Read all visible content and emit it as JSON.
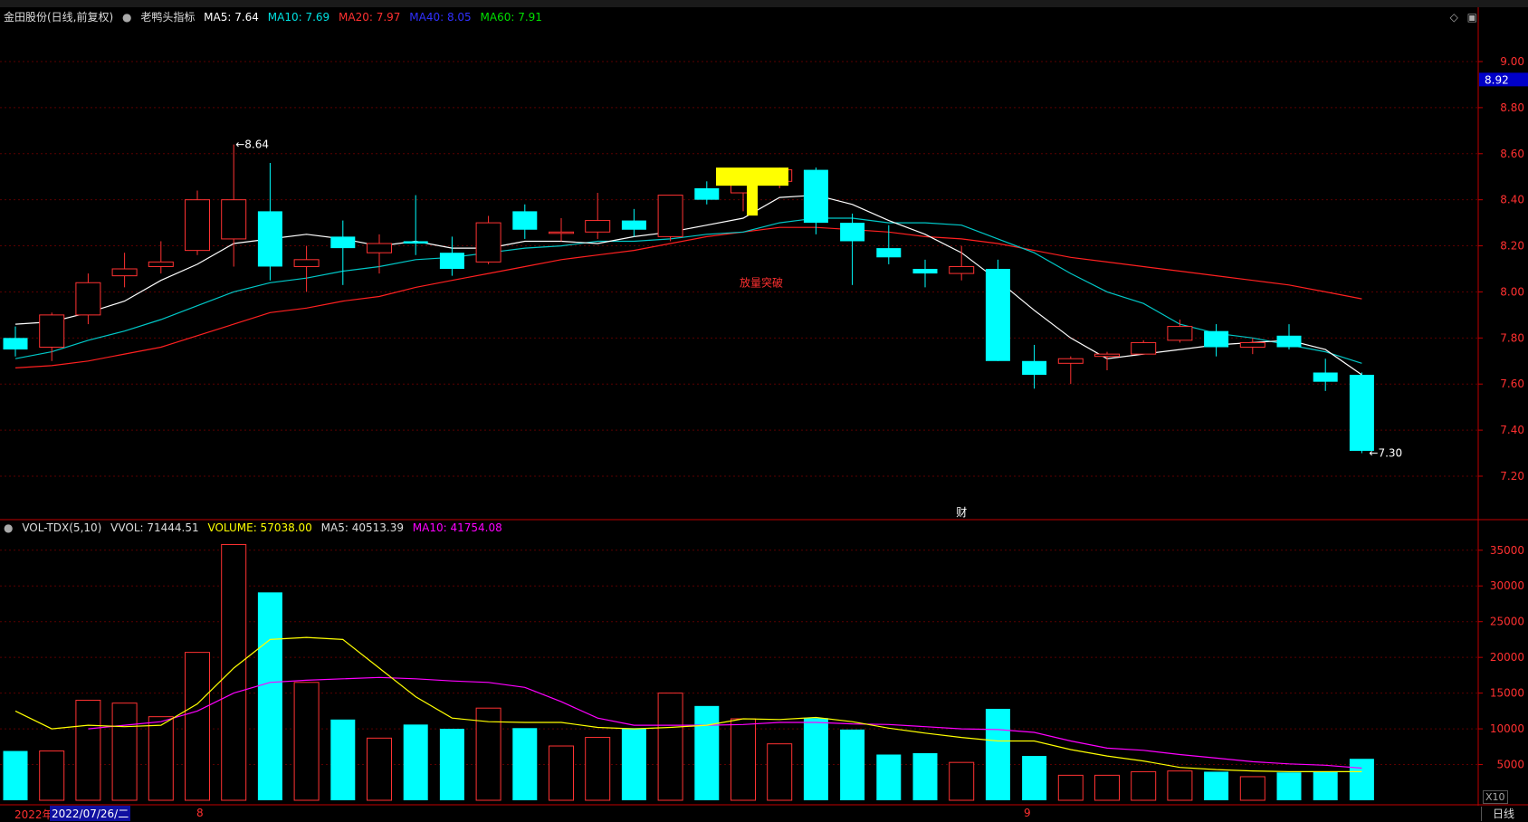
{
  "header": {
    "stock": "金田股份(日线,前复权)",
    "indicator": "老鸭头指标",
    "ma5": "MA5: 7.64",
    "ma10": "MA10: 7.69",
    "ma20": "MA20: 7.97",
    "ma40": "MA40: 8.05",
    "ma60": "MA60: 7.91"
  },
  "vol_header": {
    "name": "VOL-TDX(5,10)",
    "vvol": "VVOL: 71444.51",
    "volume": "VOLUME: 57038.00",
    "ma5": "MA5: 40513.39",
    "ma10": "MA10: 41754.08"
  },
  "footer": {
    "year_label": "2022年",
    "date_label": "2022/07/26/二",
    "month_8": "8",
    "month_9": "9",
    "daily_button": "日线",
    "x10": "X10"
  },
  "colors": {
    "up": "#ff3232",
    "down": "#00ffff",
    "ma5": "#ffffff",
    "ma10": "#00c8c8",
    "ma20": "#ff2020",
    "vol_ma5": "#ffff00",
    "vol_ma10": "#ff00ff",
    "axis": "#c00000",
    "current_price_bg": "#0000c8"
  },
  "chart_data": [
    {
      "type": "candlestick",
      "current_price": "8.92",
      "high_label": "8.64",
      "low_label": "7.30",
      "annotation": "放量突破",
      "marker": "财",
      "ylim": [
        7.2,
        9.0
      ],
      "yticks": [
        "9.00",
        "8.80",
        "8.60",
        "8.40",
        "8.20",
        "8.00",
        "7.80",
        "7.60",
        "7.40",
        "7.20"
      ],
      "candles": [
        {
          "o": 7.8,
          "h": 7.85,
          "l": 7.72,
          "c": 7.75
        },
        {
          "o": 7.76,
          "h": 7.91,
          "l": 7.7,
          "c": 7.9
        },
        {
          "o": 7.9,
          "h": 8.08,
          "l": 7.86,
          "c": 8.04
        },
        {
          "o": 8.07,
          "h": 8.17,
          "l": 8.02,
          "c": 8.1
        },
        {
          "o": 8.11,
          "h": 8.22,
          "l": 8.08,
          "c": 8.13
        },
        {
          "o": 8.18,
          "h": 8.44,
          "l": 8.16,
          "c": 8.4
        },
        {
          "o": 8.23,
          "h": 8.64,
          "l": 8.11,
          "c": 8.4
        },
        {
          "o": 8.35,
          "h": 8.56,
          "l": 8.05,
          "c": 8.11
        },
        {
          "o": 8.11,
          "h": 8.2,
          "l": 8.0,
          "c": 8.14
        },
        {
          "o": 8.24,
          "h": 8.31,
          "l": 8.03,
          "c": 8.19
        },
        {
          "o": 8.17,
          "h": 8.25,
          "l": 8.08,
          "c": 8.21
        },
        {
          "o": 8.22,
          "h": 8.42,
          "l": 8.16,
          "c": 8.21
        },
        {
          "o": 8.17,
          "h": 8.24,
          "l": 8.07,
          "c": 8.1
        },
        {
          "o": 8.13,
          "h": 8.33,
          "l": 8.12,
          "c": 8.3
        },
        {
          "o": 8.35,
          "h": 8.38,
          "l": 8.23,
          "c": 8.27
        },
        {
          "o": 8.26,
          "h": 8.32,
          "l": 8.22,
          "c": 8.26
        },
        {
          "o": 8.26,
          "h": 8.43,
          "l": 8.23,
          "c": 8.31
        },
        {
          "o": 8.31,
          "h": 8.36,
          "l": 8.24,
          "c": 8.27
        },
        {
          "o": 8.24,
          "h": 8.42,
          "l": 8.22,
          "c": 8.42
        },
        {
          "o": 8.45,
          "h": 8.48,
          "l": 8.38,
          "c": 8.4
        },
        {
          "o": 8.43,
          "h": 8.51,
          "l": 8.35,
          "c": 8.48
        },
        {
          "o": 8.48,
          "h": 8.54,
          "l": 8.45,
          "c": 8.53
        },
        {
          "o": 8.53,
          "h": 8.54,
          "l": 8.25,
          "c": 8.3
        },
        {
          "o": 8.3,
          "h": 8.34,
          "l": 8.03,
          "c": 8.22
        },
        {
          "o": 8.19,
          "h": 8.29,
          "l": 8.12,
          "c": 8.15
        },
        {
          "o": 8.1,
          "h": 8.14,
          "l": 8.02,
          "c": 8.08
        },
        {
          "o": 8.08,
          "h": 8.2,
          "l": 8.05,
          "c": 8.11
        },
        {
          "o": 8.1,
          "h": 8.14,
          "l": 7.7,
          "c": 7.7
        },
        {
          "o": 7.7,
          "h": 7.77,
          "l": 7.58,
          "c": 7.64
        },
        {
          "o": 7.69,
          "h": 7.72,
          "l": 7.6,
          "c": 7.71
        },
        {
          "o": 7.72,
          "h": 7.74,
          "l": 7.66,
          "c": 7.73
        },
        {
          "o": 7.73,
          "h": 7.79,
          "l": 7.73,
          "c": 7.78
        },
        {
          "o": 7.79,
          "h": 7.88,
          "l": 7.78,
          "c": 7.85
        },
        {
          "o": 7.83,
          "h": 7.86,
          "l": 7.72,
          "c": 7.76
        },
        {
          "o": 7.76,
          "h": 7.8,
          "l": 7.73,
          "c": 7.78
        },
        {
          "o": 7.81,
          "h": 7.86,
          "l": 7.75,
          "c": 7.76
        },
        {
          "o": 7.65,
          "h": 7.71,
          "l": 7.57,
          "c": 7.61
        },
        {
          "o": 7.64,
          "h": 7.65,
          "l": 7.3,
          "c": 7.31
        }
      ],
      "ma5": [
        7.86,
        7.87,
        7.91,
        7.96,
        8.05,
        8.12,
        8.21,
        8.23,
        8.25,
        8.23,
        8.2,
        8.22,
        8.19,
        8.19,
        8.22,
        8.22,
        8.21,
        8.24,
        8.26,
        8.29,
        8.32,
        8.41,
        8.42,
        8.38,
        8.31,
        8.25,
        8.17,
        8.05,
        7.92,
        7.8,
        7.71,
        7.73,
        7.75,
        7.77,
        7.78,
        7.79,
        7.75,
        7.64
      ],
      "ma10": [
        7.71,
        7.74,
        7.79,
        7.83,
        7.88,
        7.94,
        8.0,
        8.04,
        8.06,
        8.09,
        8.11,
        8.14,
        8.15,
        8.17,
        8.19,
        8.2,
        8.22,
        8.22,
        8.23,
        8.25,
        8.26,
        8.3,
        8.32,
        8.32,
        8.3,
        8.3,
        8.29,
        8.23,
        8.17,
        8.08,
        8.0,
        7.95,
        7.86,
        7.82,
        7.8,
        7.77,
        7.74,
        7.69
      ],
      "ma20": [
        7.67,
        7.68,
        7.7,
        7.73,
        7.76,
        7.81,
        7.86,
        7.91,
        7.93,
        7.96,
        7.98,
        8.02,
        8.05,
        8.08,
        8.11,
        8.14,
        8.16,
        8.18,
        8.21,
        8.24,
        8.26,
        8.28,
        8.28,
        8.27,
        8.26,
        8.24,
        8.23,
        8.21,
        8.18,
        8.15,
        8.13,
        8.11,
        8.09,
        8.07,
        8.05,
        8.03,
        8.0,
        7.97
      ]
    },
    {
      "type": "bar",
      "title": "VOL-TDX(5,10)",
      "ylim": [
        0,
        37000
      ],
      "yticks": [
        "35000",
        "30000",
        "25000",
        "20000",
        "15000",
        "10000",
        "5000"
      ],
      "volumes": [
        6900,
        6900,
        14000,
        13600,
        11700,
        20700,
        35800,
        29100,
        16500,
        11300,
        8700,
        10600,
        10000,
        12900,
        10100,
        7600,
        8800,
        10100,
        15000,
        13200,
        11400,
        7900,
        11500,
        9900,
        6400,
        6600,
        5300,
        12800,
        6200,
        3500,
        3500,
        4000,
        4100,
        4000,
        3300,
        3900,
        4000,
        5800
      ],
      "vol_ma5": [
        12500,
        10000,
        10500,
        10300,
        10500,
        13500,
        18500,
        22500,
        22800,
        22500,
        18500,
        14500,
        11500,
        11000,
        10900,
        10900,
        10200,
        10000,
        10200,
        10500,
        11400,
        11300,
        11600,
        11000,
        10100,
        9400,
        8800,
        8300,
        8300,
        7100,
        6200,
        5500,
        4600,
        4300,
        4100,
        4000,
        4000,
        4000
      ],
      "vol_ma10": [
        null,
        null,
        10000,
        10500,
        11000,
        12500,
        15000,
        16500,
        16800,
        17000,
        17200,
        17000,
        16700,
        16500,
        15800,
        13800,
        11500,
        10500,
        10500,
        10500,
        10600,
        10900,
        10900,
        10700,
        10600,
        10300,
        10000,
        9900,
        9500,
        8300,
        7300,
        7000,
        6400,
        5900,
        5400,
        5100,
        4900,
        4500
      ]
    }
  ]
}
